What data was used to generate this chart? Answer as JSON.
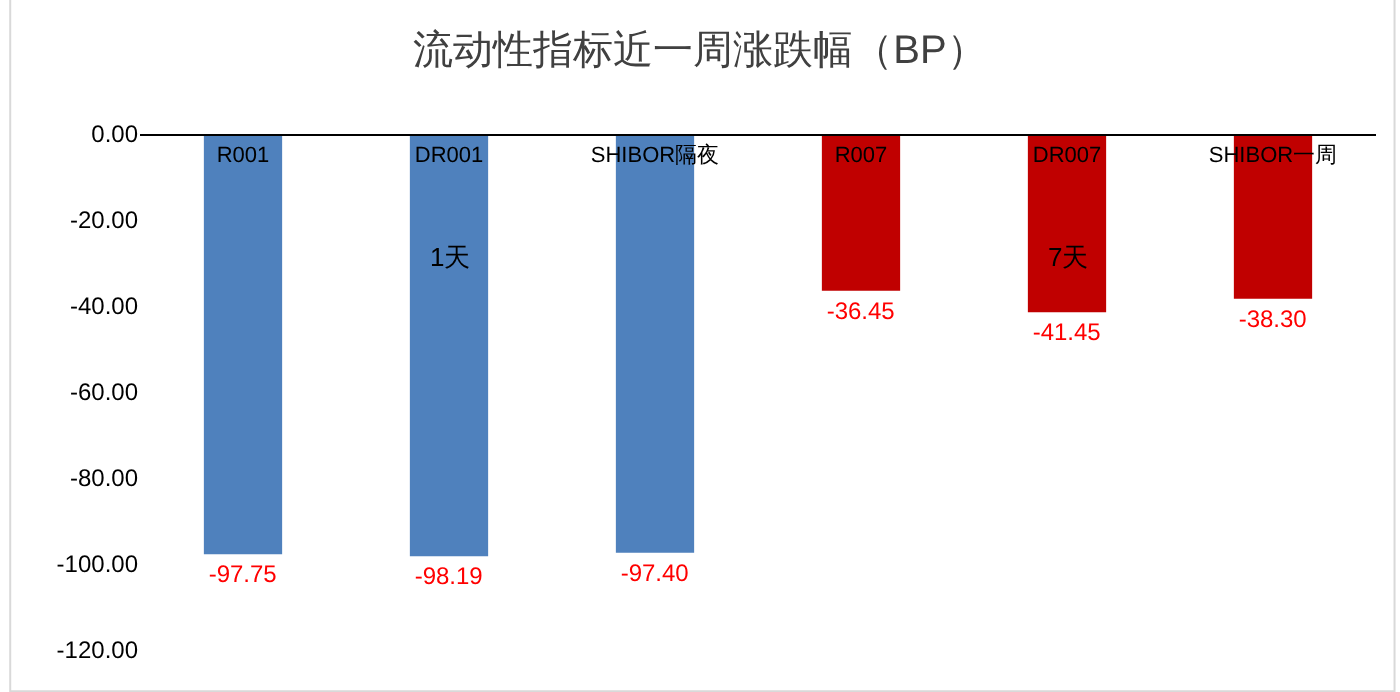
{
  "chart_data": {
    "type": "bar",
    "title": "流动性指标近一周涨跌幅（BP）",
    "categories": [
      "R001",
      "DR001",
      "SHIBOR隔夜",
      "R007",
      "DR007",
      "SHIBOR一周"
    ],
    "values": [
      -97.75,
      -98.19,
      -97.4,
      -36.45,
      -41.45,
      -38.3
    ],
    "colors": [
      "#4f81bd",
      "#4f81bd",
      "#4f81bd",
      "#c00000",
      "#c00000",
      "#c00000"
    ],
    "value_labels": [
      "-97.75",
      "-98.19",
      "-97.40",
      "-36.45",
      "-41.45",
      "-38.30"
    ],
    "annotations": [
      "1天",
      "7天"
    ],
    "ylim": [
      -120,
      0
    ],
    "yticks": [
      {
        "value": 0,
        "label": "0.00"
      },
      {
        "value": -20,
        "label": "-20.00"
      },
      {
        "value": -40,
        "label": "-40.00"
      },
      {
        "value": -60,
        "label": "-60.00"
      },
      {
        "value": -80,
        "label": "-80.00"
      },
      {
        "value": -100,
        "label": "-100.00"
      },
      {
        "value": -120,
        "label": "-120.00"
      }
    ],
    "grid": false,
    "legend": false
  }
}
